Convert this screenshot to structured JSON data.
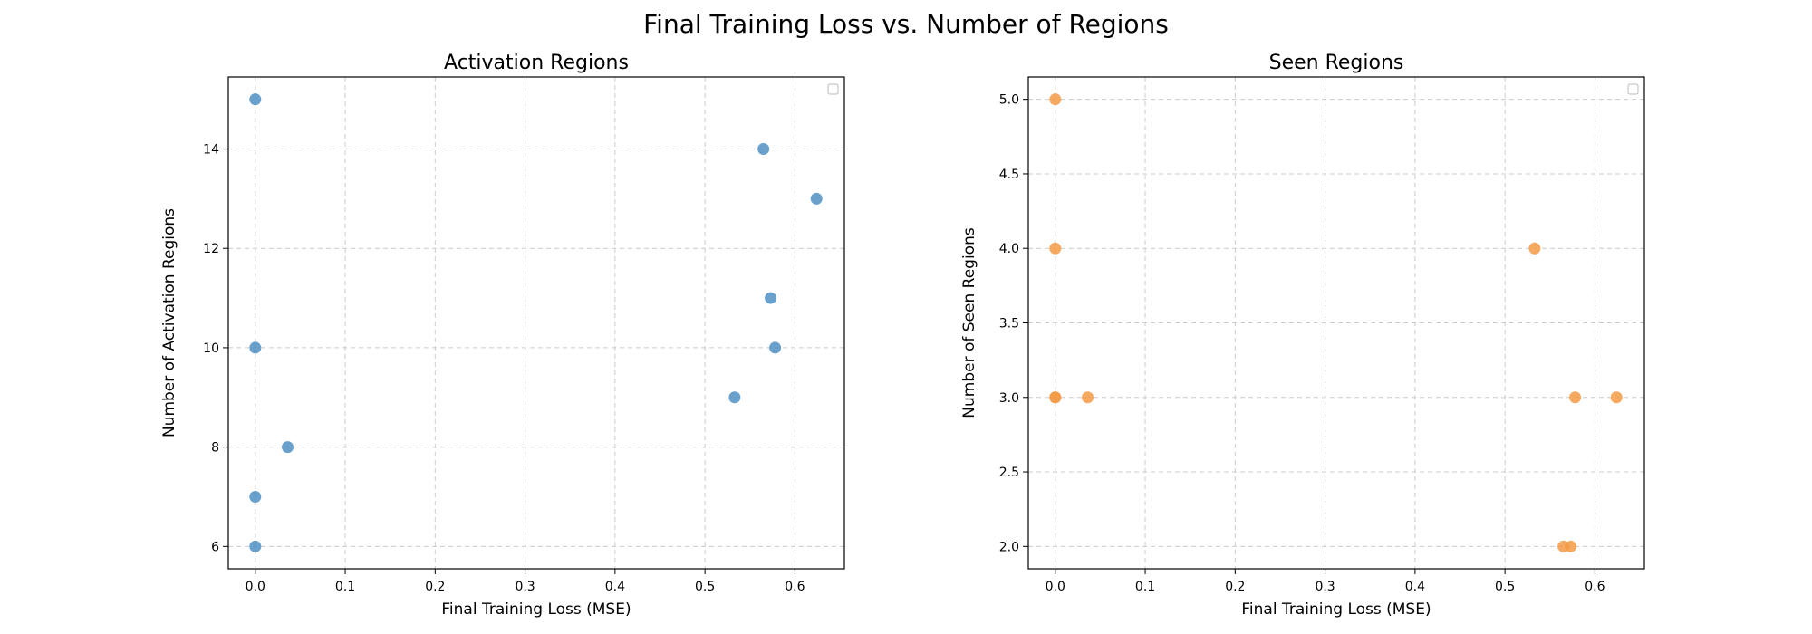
{
  "figure": {
    "title": "Final Training Loss vs. Number of Regions"
  },
  "chart_data": [
    {
      "type": "scatter",
      "title": "Activation Regions",
      "xlabel": "Final Training Loss (MSE)",
      "ylabel": "Number of Activation Regions",
      "xlim": [
        -0.03,
        0.655
      ],
      "ylim": [
        5.55,
        15.45
      ],
      "xticks": [
        0.0,
        0.1,
        0.2,
        0.3,
        0.4,
        0.5,
        0.6
      ],
      "xtick_labels": [
        "0.0",
        "0.1",
        "0.2",
        "0.3",
        "0.4",
        "0.5",
        "0.6"
      ],
      "yticks": [
        6,
        8,
        10,
        12,
        14
      ],
      "ytick_labels": [
        "6",
        "8",
        "10",
        "12",
        "14"
      ],
      "grid": true,
      "legend": "top-right (empty)",
      "color": "#4f8fc3",
      "points": [
        {
          "x": 0.0,
          "y": 15
        },
        {
          "x": 0.0,
          "y": 10
        },
        {
          "x": 0.0,
          "y": 7
        },
        {
          "x": 0.0,
          "y": 6
        },
        {
          "x": 0.036,
          "y": 8
        },
        {
          "x": 0.533,
          "y": 9
        },
        {
          "x": 0.565,
          "y": 14
        },
        {
          "x": 0.573,
          "y": 11
        },
        {
          "x": 0.578,
          "y": 10
        },
        {
          "x": 0.624,
          "y": 13
        }
      ]
    },
    {
      "type": "scatter",
      "title": "Seen Regions",
      "xlabel": "Final Training Loss (MSE)",
      "ylabel": "Number of Seen Regions",
      "xlim": [
        -0.03,
        0.655
      ],
      "ylim": [
        1.85,
        5.15
      ],
      "xticks": [
        0.0,
        0.1,
        0.2,
        0.3,
        0.4,
        0.5,
        0.6
      ],
      "xtick_labels": [
        "0.0",
        "0.1",
        "0.2",
        "0.3",
        "0.4",
        "0.5",
        "0.6"
      ],
      "yticks": [
        2.0,
        2.5,
        3.0,
        3.5,
        4.0,
        4.5,
        5.0
      ],
      "ytick_labels": [
        "2.0",
        "2.5",
        "3.0",
        "3.5",
        "4.0",
        "4.5",
        "5.0"
      ],
      "grid": true,
      "legend": "top-right (empty)",
      "color": "#f59a45",
      "points": [
        {
          "x": 0.0,
          "y": 5
        },
        {
          "x": 0.0,
          "y": 4
        },
        {
          "x": 0.0,
          "y": 3
        },
        {
          "x": 0.0,
          "y": 3
        },
        {
          "x": 0.036,
          "y": 3
        },
        {
          "x": 0.533,
          "y": 4
        },
        {
          "x": 0.565,
          "y": 2
        },
        {
          "x": 0.573,
          "y": 2
        },
        {
          "x": 0.578,
          "y": 3
        },
        {
          "x": 0.624,
          "y": 3
        }
      ]
    }
  ]
}
